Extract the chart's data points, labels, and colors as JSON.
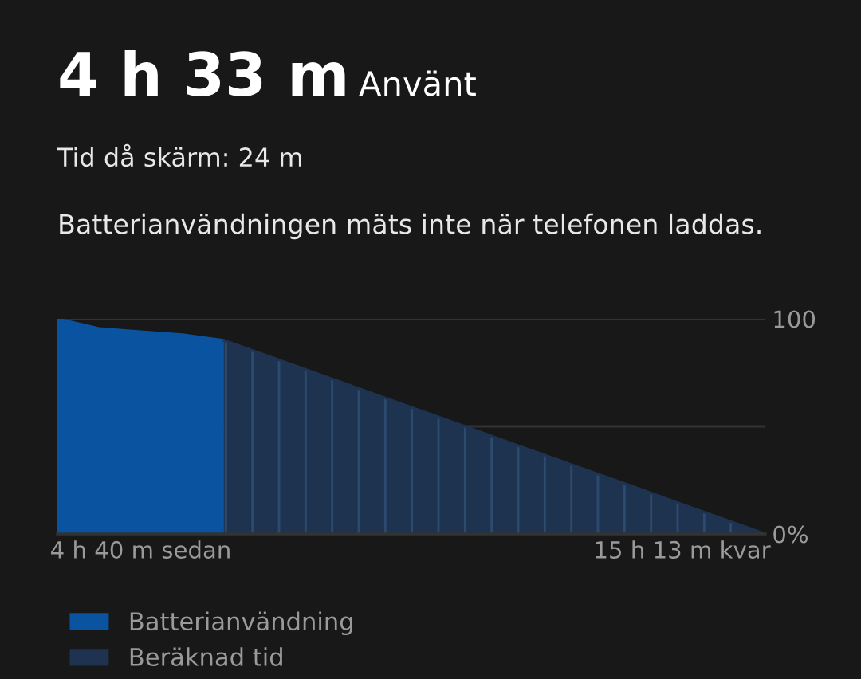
{
  "chart_data": {
    "type": "area",
    "title": "4 h 33 m",
    "subtitle": "Använt",
    "annotations": [
      "Tid då skärm: 24 m",
      "Batterianvändningen mäts inte när telefonen laddas."
    ],
    "categories": [
      null,
      null,
      "4 h 40 m sedan",
      null,
      null,
      null,
      null,
      null,
      null,
      null,
      null,
      null,
      null,
      null,
      null,
      "15 h 13 m kvar",
      null,
      null
    ],
    "series": [
      {
        "name": "Batterianvändning",
        "color": "#0a53a0",
        "values": [
          100,
          95.5,
          94,
          92.6,
          90,
          null,
          null,
          null,
          null,
          null,
          null,
          null,
          null,
          null,
          null,
          null,
          null,
          null
        ]
      },
      {
        "name": "Beräknad tid",
        "color": "#1e3350",
        "values": [
          null,
          null,
          null,
          null,
          90,
          83.1,
          76.2,
          69.2,
          62.3,
          55.4,
          48.5,
          41.5,
          34.6,
          27.7,
          20.8,
          13.8,
          6.9,
          0
        ]
      }
    ],
    "ylim": [
      0,
      100
    ],
    "yticks": [
      {
        "value": 0,
        "label": "0%"
      },
      {
        "value": 50,
        "label": null
      },
      100
    ],
    "grid": "y",
    "legend": "bottom"
  }
}
